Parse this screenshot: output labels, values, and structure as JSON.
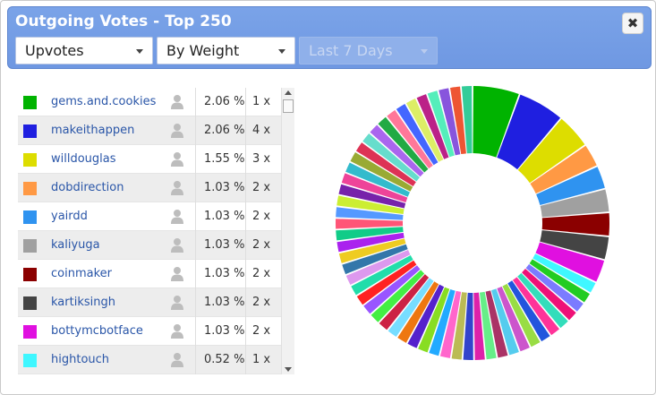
{
  "title": "Outgoing Votes - Top 250",
  "close_label": "✖",
  "filters": {
    "type": "Upvotes",
    "sort": "By Weight",
    "period": "Last 7 Days"
  },
  "rows": [
    {
      "user": "gems.and.cookies",
      "pct": "2.06 %",
      "count": "1 x",
      "color": "#00b300"
    },
    {
      "user": "makeithappen",
      "pct": "2.06 %",
      "count": "4 x",
      "color": "#1f1fe0"
    },
    {
      "user": "willdouglas",
      "pct": "1.55 %",
      "count": "3 x",
      "color": "#dddd00"
    },
    {
      "user": "dobdirection",
      "pct": "1.03 %",
      "count": "2 x",
      "color": "#ff9944"
    },
    {
      "user": "yairdd",
      "pct": "1.03 %",
      "count": "2 x",
      "color": "#2f93f0"
    },
    {
      "user": "kaliyuga",
      "pct": "1.03 %",
      "count": "2 x",
      "color": "#a0a0a0"
    },
    {
      "user": "coinmaker",
      "pct": "1.03 %",
      "count": "2 x",
      "color": "#8b0000"
    },
    {
      "user": "kartiksingh",
      "pct": "1.03 %",
      "count": "2 x",
      "color": "#444444"
    },
    {
      "user": "bottymcbotface",
      "pct": "1.03 %",
      "count": "2 x",
      "color": "#e010e0"
    },
    {
      "user": "hightouch",
      "pct": "0.52 %",
      "count": "1 x",
      "color": "#3ff7ff"
    }
  ],
  "chart_data": {
    "type": "pie",
    "donut": true,
    "labels": [
      "gems.and.cookies",
      "makeithappen",
      "willdouglas",
      "dobdirection",
      "yairdd",
      "kaliyuga",
      "coinmaker",
      "kartiksingh",
      "bottymcbotface",
      "hightouch"
    ],
    "values": [
      2.06,
      2.06,
      1.55,
      1.03,
      1.03,
      1.03,
      1.03,
      1.03,
      1.03,
      0.52
    ],
    "colors": [
      "#00b300",
      "#1f1fe0",
      "#dddd00",
      "#ff9944",
      "#2f93f0",
      "#a0a0a0",
      "#8b0000",
      "#444444",
      "#e010e0",
      "#3ff7ff"
    ],
    "other_slice_colors": [
      "#22cc22",
      "#7b7bff",
      "#ee1177",
      "#33ddbb",
      "#ff3399",
      "#2255dd",
      "#99dd44",
      "#cc55cc",
      "#55ccee",
      "#aa3366",
      "#66ee88",
      "#dd22aa",
      "#3344cc",
      "#bbbb55",
      "#ff66cc",
      "#22aaff",
      "#88dd22",
      "#5522cc",
      "#ee7711",
      "#77ddff",
      "#cc2244",
      "#44ee44",
      "#9955ff",
      "#ff2222",
      "#22ddaa",
      "#dd99ee",
      "#3377aa",
      "#eecc22",
      "#aa22ee",
      "#11cc88",
      "#ff5577",
      "#5599ff",
      "#ccee33",
      "#7722aa",
      "#ee4499",
      "#33bbcc",
      "#99aa33",
      "#dd3355",
      "#66ddcc",
      "#aa66ee",
      "#22aa44",
      "#ff7799",
      "#4466ff",
      "#ddee66",
      "#bb2288",
      "#55eebb",
      "#8855dd",
      "#ee5533",
      "#33cc99"
    ],
    "other_slice_value": 0.5
  }
}
